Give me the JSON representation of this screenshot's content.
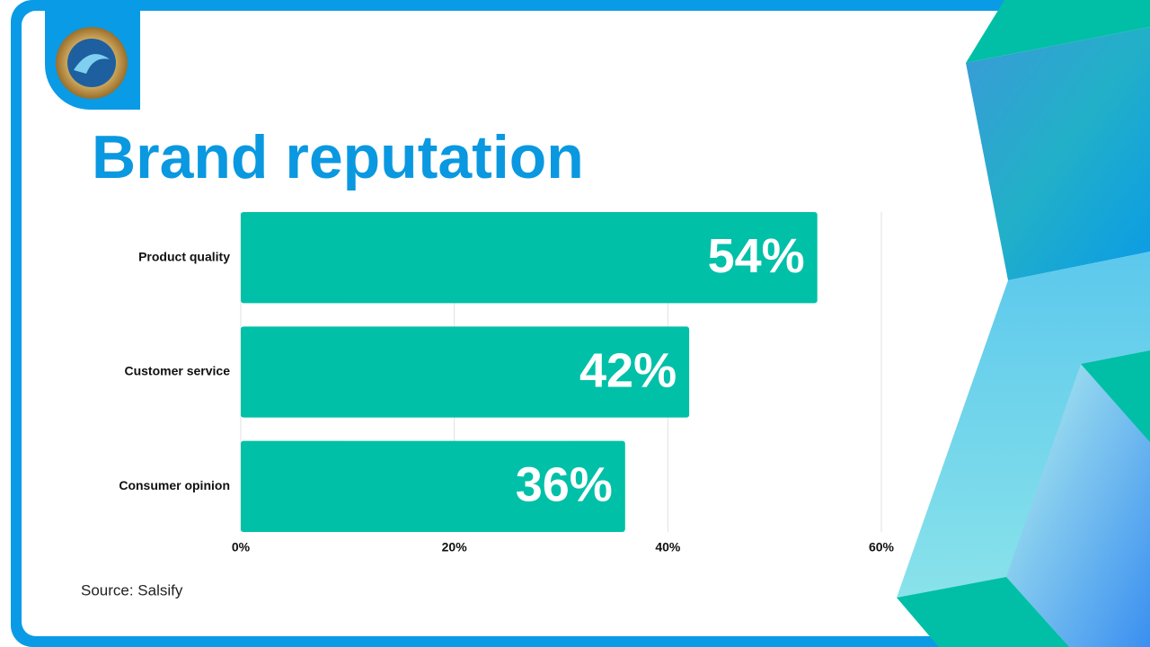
{
  "chart_data": {
    "type": "bar",
    "orientation": "horizontal",
    "title": "Brand reputation",
    "categories": [
      "Product quality",
      "Customer service",
      "Consumer opinion"
    ],
    "values": [
      54,
      42,
      36
    ],
    "value_labels": [
      "54%",
      "42%",
      "36%"
    ],
    "color": "#00c0a8",
    "xlim": [
      0,
      60
    ],
    "xticks": [
      {
        "value": 0,
        "label": "0%"
      },
      {
        "value": 20,
        "label": "20%"
      },
      {
        "value": 40,
        "label": "40%"
      },
      {
        "value": 60,
        "label": "60%"
      }
    ],
    "grid": true,
    "source": "Source: Salsify"
  }
}
